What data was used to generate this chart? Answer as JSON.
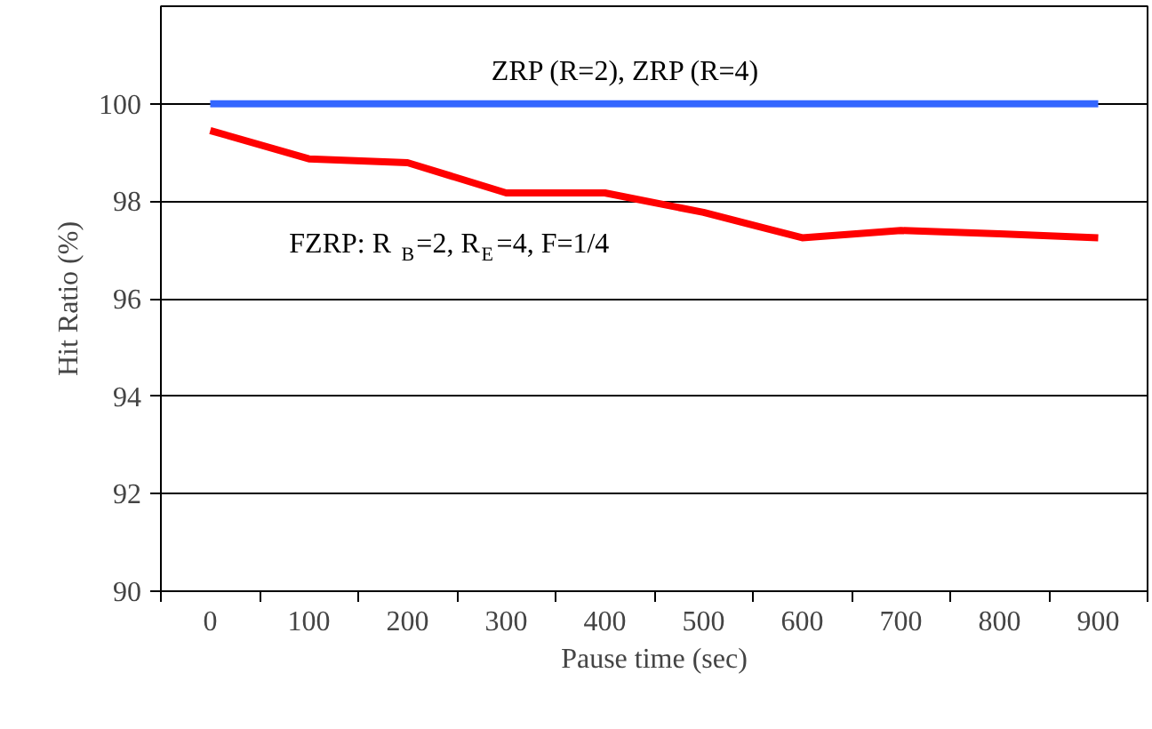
{
  "chart_data": {
    "type": "line",
    "xlabel": "Pause time (sec)",
    "ylabel": "Hit Ratio (%)",
    "categories": [
      "0",
      "100",
      "200",
      "300",
      "400",
      "500",
      "600",
      "700",
      "800",
      "900"
    ],
    "series": [
      {
        "name": "ZRP (R=2), ZRP (R=4)",
        "color": "#3366ff",
        "values": [
          100,
          100,
          100,
          100,
          100,
          100,
          100,
          100,
          100,
          100
        ]
      },
      {
        "name": "FZRP: R$_{B}$=2, R$_{E}$=4, F=1/4",
        "color": "#ff0000",
        "values": [
          99.45,
          98.87,
          98.79,
          98.17,
          98.17,
          97.77,
          97.25,
          97.4,
          97.33,
          97.25
        ]
      }
    ],
    "ylim": [
      90,
      102
    ],
    "yticks": [
      90,
      92,
      94,
      96,
      98,
      100
    ],
    "grid": "y",
    "marker": "none",
    "line_style": "solid"
  }
}
